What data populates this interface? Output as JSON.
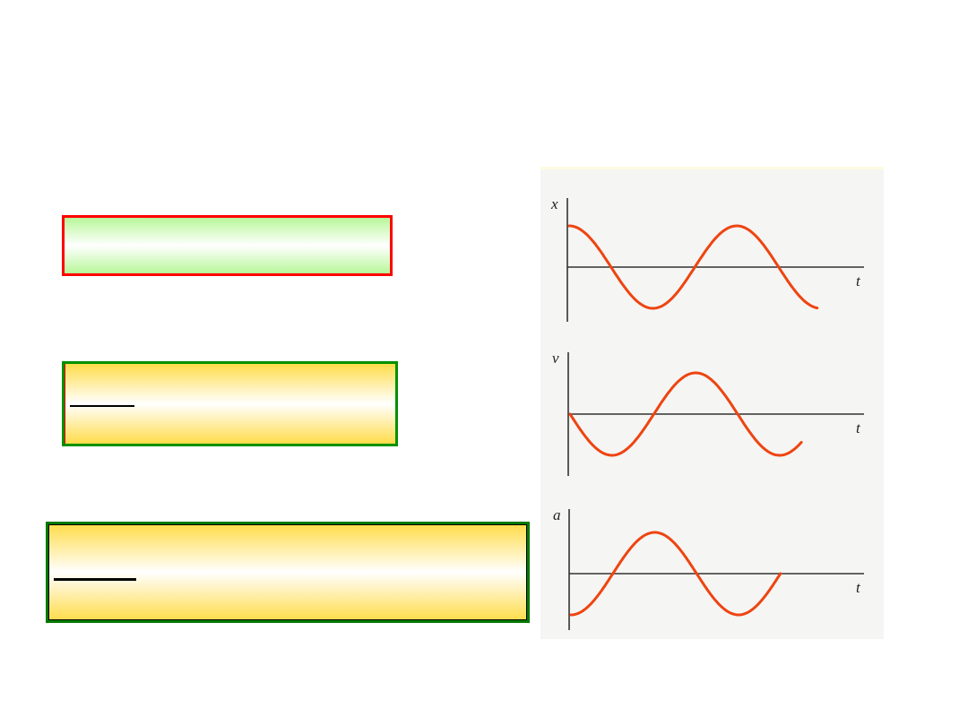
{
  "boxes": [
    {
      "style": "green-gradient",
      "border_color": "#ff0000"
    },
    {
      "style": "yellow-gradient",
      "border_color": "#009000"
    },
    {
      "style": "yellow-gradient",
      "border_color": "#007a00"
    }
  ],
  "colors": {
    "curve": "#ee4411",
    "axis": "#333333",
    "panel_bg": "#f5f5f3"
  },
  "chart_data": {
    "type": "line",
    "graphs": [
      {
        "ylabel": "x",
        "xlabel": "t",
        "shape": "cosine",
        "start_phase_cycles": 0,
        "cycles": 1.48
      },
      {
        "ylabel": "v",
        "xlabel": "t",
        "shape": "negative sine",
        "start_phase_cycles": 0,
        "cycles": 1.38
      },
      {
        "ylabel": "a",
        "xlabel": "t",
        "shape": "negative cosine",
        "start_phase_cycles": 0,
        "cycles": 1.25
      }
    ],
    "grid": false
  }
}
